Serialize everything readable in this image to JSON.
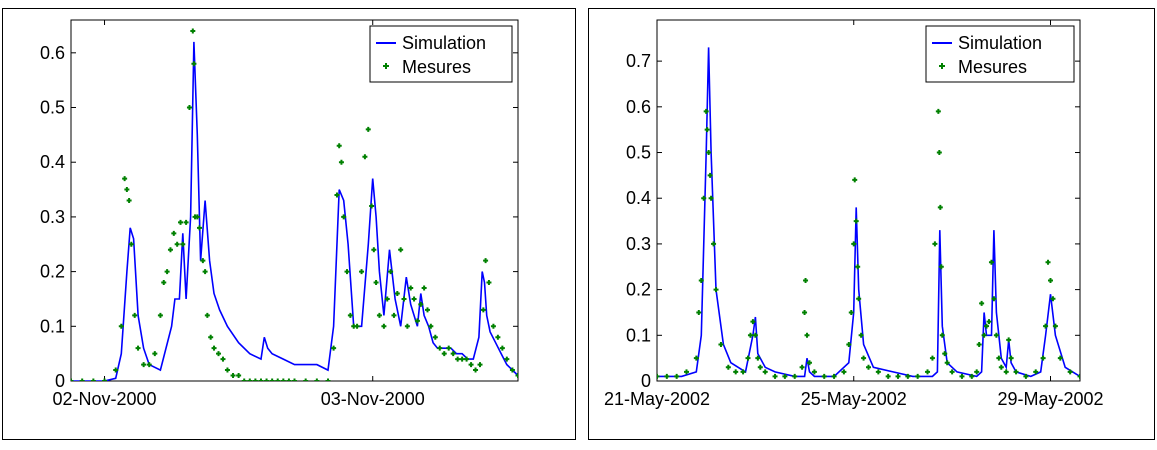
{
  "chart_data": [
    {
      "type": "line",
      "title": "",
      "xlabel": "",
      "ylabel": "",
      "x_unit": "hours since 02-Nov-2000 00:00",
      "xlim": [
        -3,
        37
      ],
      "ylim": [
        0,
        0.66
      ],
      "x_ticks": [
        {
          "x": 0,
          "label": "02-Nov-2000"
        },
        {
          "x": 24,
          "label": "03-Nov-2000"
        }
      ],
      "y_ticks": [
        {
          "y": 0,
          "label": "0"
        },
        {
          "y": 0.1,
          "label": "0.1"
        },
        {
          "y": 0.2,
          "label": "0.2"
        },
        {
          "y": 0.3,
          "label": "0.3"
        },
        {
          "y": 0.4,
          "label": "0.4"
        },
        {
          "y": 0.5,
          "label": "0.5"
        },
        {
          "y": 0.6,
          "label": "0.6"
        }
      ],
      "legend": {
        "placement": "top-right",
        "entries": [
          "Simulation",
          "Mesures"
        ]
      },
      "colors": {
        "simulation": "#0000ff",
        "mesures": "#008000"
      },
      "series": [
        {
          "name": "Simulation",
          "style": "line",
          "x": [
            -3,
            0,
            1,
            1.5,
            2,
            2.3,
            2.6,
            3,
            3.5,
            4,
            5,
            6,
            6.3,
            6.7,
            7,
            7.3,
            7.7,
            8,
            8.3,
            8.6,
            9,
            9.4,
            9.8,
            10.3,
            11,
            12,
            13,
            14,
            14.3,
            14.6,
            15,
            16,
            17,
            18,
            19,
            20,
            20.5,
            21,
            21.4,
            21.8,
            22.3,
            23,
            23.6,
            24,
            24.3,
            24.6,
            25,
            25.5,
            26,
            26.5,
            27,
            27.4,
            28,
            28.3,
            28.6,
            29,
            29.4,
            29.8,
            30.2,
            30.6,
            31,
            31.5,
            32,
            32.5,
            33,
            33.5,
            33.8,
            34,
            34.2,
            34.5,
            35,
            35.5,
            36,
            37
          ],
          "y": [
            0,
            0,
            0.005,
            0.05,
            0.2,
            0.28,
            0.26,
            0.12,
            0.06,
            0.03,
            0.02,
            0.1,
            0.15,
            0.15,
            0.27,
            0.15,
            0.3,
            0.62,
            0.45,
            0.22,
            0.33,
            0.22,
            0.16,
            0.13,
            0.1,
            0.07,
            0.05,
            0.04,
            0.08,
            0.06,
            0.05,
            0.04,
            0.03,
            0.03,
            0.03,
            0.02,
            0.1,
            0.35,
            0.33,
            0.25,
            0.1,
            0.1,
            0.25,
            0.37,
            0.3,
            0.2,
            0.12,
            0.24,
            0.15,
            0.1,
            0.19,
            0.14,
            0.1,
            0.16,
            0.12,
            0.1,
            0.07,
            0.06,
            0.06,
            0.06,
            0.06,
            0.05,
            0.05,
            0.04,
            0.04,
            0.08,
            0.2,
            0.18,
            0.12,
            0.09,
            0.07,
            0.05,
            0.03,
            0.01
          ]
        },
        {
          "name": "Mesures",
          "style": "markers",
          "x": [
            -3,
            -2,
            -1,
            0,
            1,
            1.5,
            1.8,
            2,
            2.2,
            2.4,
            2.7,
            3,
            3.5,
            4,
            4.5,
            5,
            5.3,
            5.6,
            5.9,
            6.2,
            6.5,
            6.8,
            7,
            7.3,
            7.6,
            7.9,
            8,
            8.1,
            8.3,
            8.5,
            8.8,
            9,
            9.2,
            9.5,
            9.8,
            10.2,
            10.6,
            11,
            11.5,
            12,
            12.5,
            13,
            13.5,
            14,
            14.5,
            15,
            15.5,
            16,
            16.5,
            17,
            18,
            19,
            20,
            20.5,
            20.8,
            21,
            21.2,
            21.4,
            21.7,
            22,
            22.3,
            22.6,
            23,
            23.3,
            23.6,
            23.9,
            24.1,
            24.3,
            24.6,
            25,
            25.3,
            25.6,
            25.9,
            26.2,
            26.5,
            26.8,
            27.1,
            27.4,
            27.7,
            28,
            28.3,
            28.6,
            28.9,
            29.2,
            29.6,
            30,
            30.4,
            30.8,
            31.2,
            31.6,
            32,
            32.4,
            32.8,
            33.2,
            33.6,
            33.9,
            34.1,
            34.4,
            34.8,
            35.2,
            35.6,
            36,
            36.5,
            37
          ],
          "y": [
            0,
            0,
            0,
            0,
            0.02,
            0.1,
            0.37,
            0.35,
            0.33,
            0.25,
            0.12,
            0.06,
            0.03,
            0.03,
            0.05,
            0.12,
            0.18,
            0.2,
            0.24,
            0.27,
            0.25,
            0.29,
            0.25,
            0.29,
            0.5,
            0.64,
            0.58,
            0.3,
            0.3,
            0.28,
            0.22,
            0.2,
            0.12,
            0.08,
            0.06,
            0.05,
            0.04,
            0.02,
            0.01,
            0.01,
            0.0,
            0.0,
            0.0,
            0.0,
            0.0,
            0.0,
            0.0,
            0.0,
            0.0,
            0.0,
            0.0,
            0.0,
            0.0,
            0.06,
            0.34,
            0.43,
            0.4,
            0.3,
            0.2,
            0.12,
            0.1,
            0.1,
            0.2,
            0.41,
            0.46,
            0.32,
            0.24,
            0.18,
            0.12,
            0.1,
            0.15,
            0.2,
            0.12,
            0.16,
            0.24,
            0.15,
            0.1,
            0.17,
            0.15,
            0.11,
            0.14,
            0.17,
            0.13,
            0.1,
            0.08,
            0.06,
            0.05,
            0.06,
            0.05,
            0.04,
            0.04,
            0.04,
            0.03,
            0.02,
            0.03,
            0.13,
            0.22,
            0.18,
            0.1,
            0.08,
            0.06,
            0.04,
            0.02,
            0.01
          ]
        }
      ]
    },
    {
      "type": "line",
      "title": "",
      "xlabel": "",
      "ylabel": "",
      "x_unit": "days since 21-May-2002",
      "xlim": [
        0,
        8.6
      ],
      "ylim": [
        0,
        0.79
      ],
      "x_ticks": [
        {
          "x": 0,
          "label": "21-May-2002"
        },
        {
          "x": 4,
          "label": "25-May-2002"
        },
        {
          "x": 8,
          "label": "29-May-2002"
        }
      ],
      "y_ticks": [
        {
          "y": 0,
          "label": "0"
        },
        {
          "y": 0.1,
          "label": "0.1"
        },
        {
          "y": 0.2,
          "label": "0.2"
        },
        {
          "y": 0.3,
          "label": "0.3"
        },
        {
          "y": 0.4,
          "label": "0.4"
        },
        {
          "y": 0.5,
          "label": "0.5"
        },
        {
          "y": 0.6,
          "label": "0.6"
        },
        {
          "y": 0.7,
          "label": "0.7"
        }
      ],
      "legend": {
        "placement": "top-right",
        "entries": [
          "Simulation",
          "Mesures"
        ]
      },
      "colors": {
        "simulation": "#0000ff",
        "mesures": "#008000"
      },
      "series": [
        {
          "name": "Simulation",
          "style": "line",
          "x": [
            0,
            0.5,
            0.8,
            0.9,
            1.0,
            1.05,
            1.1,
            1.2,
            1.35,
            1.5,
            1.8,
            1.95,
            2.0,
            2.05,
            2.2,
            2.4,
            2.8,
            3.0,
            3.05,
            3.1,
            3.2,
            3.6,
            3.9,
            4.0,
            4.05,
            4.1,
            4.2,
            4.4,
            4.8,
            5.2,
            5.6,
            5.7,
            5.75,
            5.8,
            5.9,
            6.1,
            6.5,
            6.6,
            6.65,
            6.7,
            6.8,
            6.85,
            6.9,
            7.0,
            7.1,
            7.15,
            7.2,
            7.3,
            7.6,
            7.8,
            7.9,
            8.0,
            8.1,
            8.3,
            8.6
          ],
          "y": [
            0.01,
            0.01,
            0.02,
            0.1,
            0.5,
            0.73,
            0.5,
            0.2,
            0.08,
            0.04,
            0.02,
            0.1,
            0.14,
            0.06,
            0.03,
            0.02,
            0.01,
            0.01,
            0.05,
            0.02,
            0.01,
            0.01,
            0.04,
            0.15,
            0.38,
            0.2,
            0.08,
            0.03,
            0.02,
            0.01,
            0.01,
            0.02,
            0.33,
            0.12,
            0.04,
            0.02,
            0.01,
            0.02,
            0.15,
            0.1,
            0.1,
            0.33,
            0.15,
            0.05,
            0.03,
            0.09,
            0.04,
            0.02,
            0.01,
            0.02,
            0.1,
            0.19,
            0.1,
            0.03,
            0.01
          ]
        },
        {
          "name": "Mesures",
          "style": "markers",
          "x": [
            0,
            0.2,
            0.4,
            0.6,
            0.8,
            0.85,
            0.9,
            0.95,
            1.0,
            1.02,
            1.05,
            1.08,
            1.1,
            1.15,
            1.2,
            1.3,
            1.45,
            1.6,
            1.75,
            1.85,
            1.9,
            1.95,
            2.0,
            2.05,
            2.1,
            2.2,
            2.4,
            2.6,
            2.8,
            2.95,
            3.0,
            3.02,
            3.05,
            3.1,
            3.2,
            3.4,
            3.6,
            3.8,
            3.9,
            3.95,
            4.0,
            4.02,
            4.05,
            4.08,
            4.1,
            4.15,
            4.2,
            4.3,
            4.5,
            4.7,
            4.9,
            5.1,
            5.3,
            5.5,
            5.6,
            5.65,
            5.7,
            5.72,
            5.74,
            5.76,
            5.78,
            5.8,
            5.85,
            5.9,
            6.0,
            6.2,
            6.4,
            6.5,
            6.55,
            6.6,
            6.65,
            6.7,
            6.75,
            6.8,
            6.85,
            6.9,
            6.95,
            7.0,
            7.1,
            7.15,
            7.2,
            7.3,
            7.5,
            7.7,
            7.85,
            7.9,
            7.95,
            8.0,
            8.05,
            8.1,
            8.2,
            8.4,
            8.6
          ],
          "y": [
            0.01,
            0.01,
            0.01,
            0.02,
            0.05,
            0.15,
            0.22,
            0.4,
            0.59,
            0.55,
            0.5,
            0.45,
            0.4,
            0.3,
            0.2,
            0.08,
            0.03,
            0.02,
            0.02,
            0.05,
            0.1,
            0.13,
            0.1,
            0.05,
            0.03,
            0.02,
            0.01,
            0.01,
            0.01,
            0.03,
            0.15,
            0.22,
            0.1,
            0.04,
            0.02,
            0.01,
            0.01,
            0.02,
            0.08,
            0.15,
            0.3,
            0.44,
            0.35,
            0.25,
            0.18,
            0.1,
            0.05,
            0.03,
            0.02,
            0.01,
            0.01,
            0.01,
            0.01,
            0.02,
            0.05,
            0.3,
            0.69,
            0.59,
            0.5,
            0.38,
            0.25,
            0.1,
            0.06,
            0.04,
            0.02,
            0.01,
            0.01,
            0.02,
            0.08,
            0.17,
            0.1,
            0.12,
            0.13,
            0.26,
            0.18,
            0.1,
            0.05,
            0.03,
            0.02,
            0.09,
            0.05,
            0.02,
            0.01,
            0.02,
            0.05,
            0.12,
            0.26,
            0.22,
            0.18,
            0.12,
            0.05,
            0.02,
            0.01
          ]
        }
      ]
    }
  ]
}
